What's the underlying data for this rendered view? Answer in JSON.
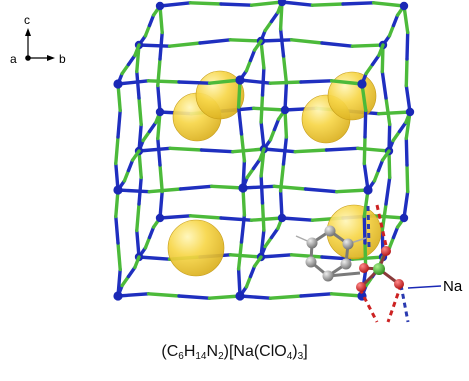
{
  "axes": {
    "c": "c",
    "a": "a",
    "b": "b"
  },
  "label": "Na",
  "formula": {
    "p1": "(C",
    "s1": "6",
    "p2": "H",
    "s2": "14",
    "p3": "N",
    "s3": "2",
    "p4": ")[Na(ClO",
    "s4": "4",
    "p5": ")",
    "s5": "3",
    "p6": "]"
  },
  "colors": {
    "node": "#1a28b5",
    "bond_blue": "#1f2fbf",
    "bond_green": "#4cba3a",
    "sphere": "#f2cf3e",
    "dash_red": "#cc2222",
    "carbon": "#8a8a8a",
    "chlorine": "#3cae2a",
    "oxygen": "#d42020"
  }
}
